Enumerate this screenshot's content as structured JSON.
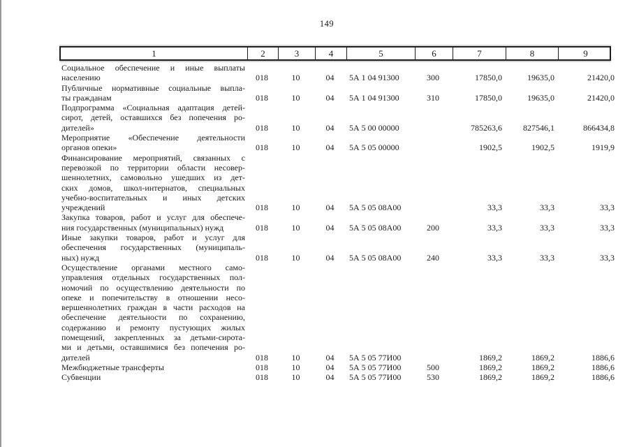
{
  "page": {
    "number": "149"
  },
  "table": {
    "headers": [
      "1",
      "2",
      "3",
      "4",
      "5",
      "6",
      "7",
      "8",
      "9"
    ],
    "rows": [
      {
        "cells": [
          "Социальное обеспечение и иные выплаты\nнаселению",
          "018",
          "10",
          "04",
          "5А 1 04 91300",
          "300",
          "17850,0",
          "19635,0",
          "21420,0"
        ]
      },
      {
        "cells": [
          "Публичные нормативные социальные выпла-\nты гражданам",
          "018",
          "10",
          "04",
          "5А 1 04 91300",
          "310",
          "17850,0",
          "19635,0",
          "21420,0"
        ]
      },
      {
        "cells": [
          "Подпрограмма «Социальная адаптация детей-\nсирот, детей, оставшихся без попечения ро-\nдителей»",
          "018",
          "10",
          "04",
          "5А 5 00 00000",
          "",
          "785263,6",
          "827546,1",
          "866434,8"
        ]
      },
      {
        "cells": [
          "Мероприятие «Обеспечение деятельности\nорганов опеки»",
          "018",
          "10",
          "04",
          "5А 5 05 00000",
          "",
          "1902,5",
          "1902,5",
          "1919,9"
        ]
      },
      {
        "cells": [
          "Финансирование мероприятий, связанных с\nперевозкой по территории области несовер-\nшеннолетних, самовольно ушедших из дет-\nских домов, школ-интернатов, специальных\nучебно-воспитательных и иных детских\nучреждений",
          "018",
          "10",
          "04",
          "5А 5 05 08А00",
          "",
          "33,3",
          "33,3",
          "33,3"
        ]
      },
      {
        "cells": [
          "Закупка товаров, работ и услуг для обеспече-\nния государственных (муниципальных) нужд",
          "018",
          "10",
          "04",
          "5А 5 05 08А00",
          "200",
          "33,3",
          "33,3",
          "33,3"
        ]
      },
      {
        "cells": [
          "Иные закупки товаров, работ и услуг для\nобеспечения государственных (муниципаль-\nных) нужд",
          "018",
          "10",
          "04",
          "5А 5 05 08А00",
          "240",
          "33,3",
          "33,3",
          "33,3"
        ]
      },
      {
        "cells": [
          "Осуществление органами местного само-\nуправления отдельных государственных пол-\nномочий по осуществлению деятельности по\nопеке и попечительству в отношении несо-\nвершеннолетних граждан в части расходов на\nобеспечение деятельности по сохранению,\nсодержанию и ремонту пустующих жилых\nпомещений, закрепленных за детьми-сирота-\nми и детьми, оставшимися без попечения ро-\nдителей",
          "018",
          "10",
          "04",
          "5А 5 05 77И00",
          "",
          "1869,2",
          "1869,2",
          "1886,6"
        ]
      },
      {
        "cells": [
          "Межбюджетные трансферты",
          "018",
          "10",
          "04",
          "5А 5 05 77И00",
          "500",
          "1869,2",
          "1869,2",
          "1886,6"
        ]
      },
      {
        "cells": [
          "Субвенции",
          "018",
          "10",
          "04",
          "5А 5 05 77И00",
          "530",
          "1869,2",
          "1869,2",
          "1886,6"
        ]
      }
    ]
  }
}
